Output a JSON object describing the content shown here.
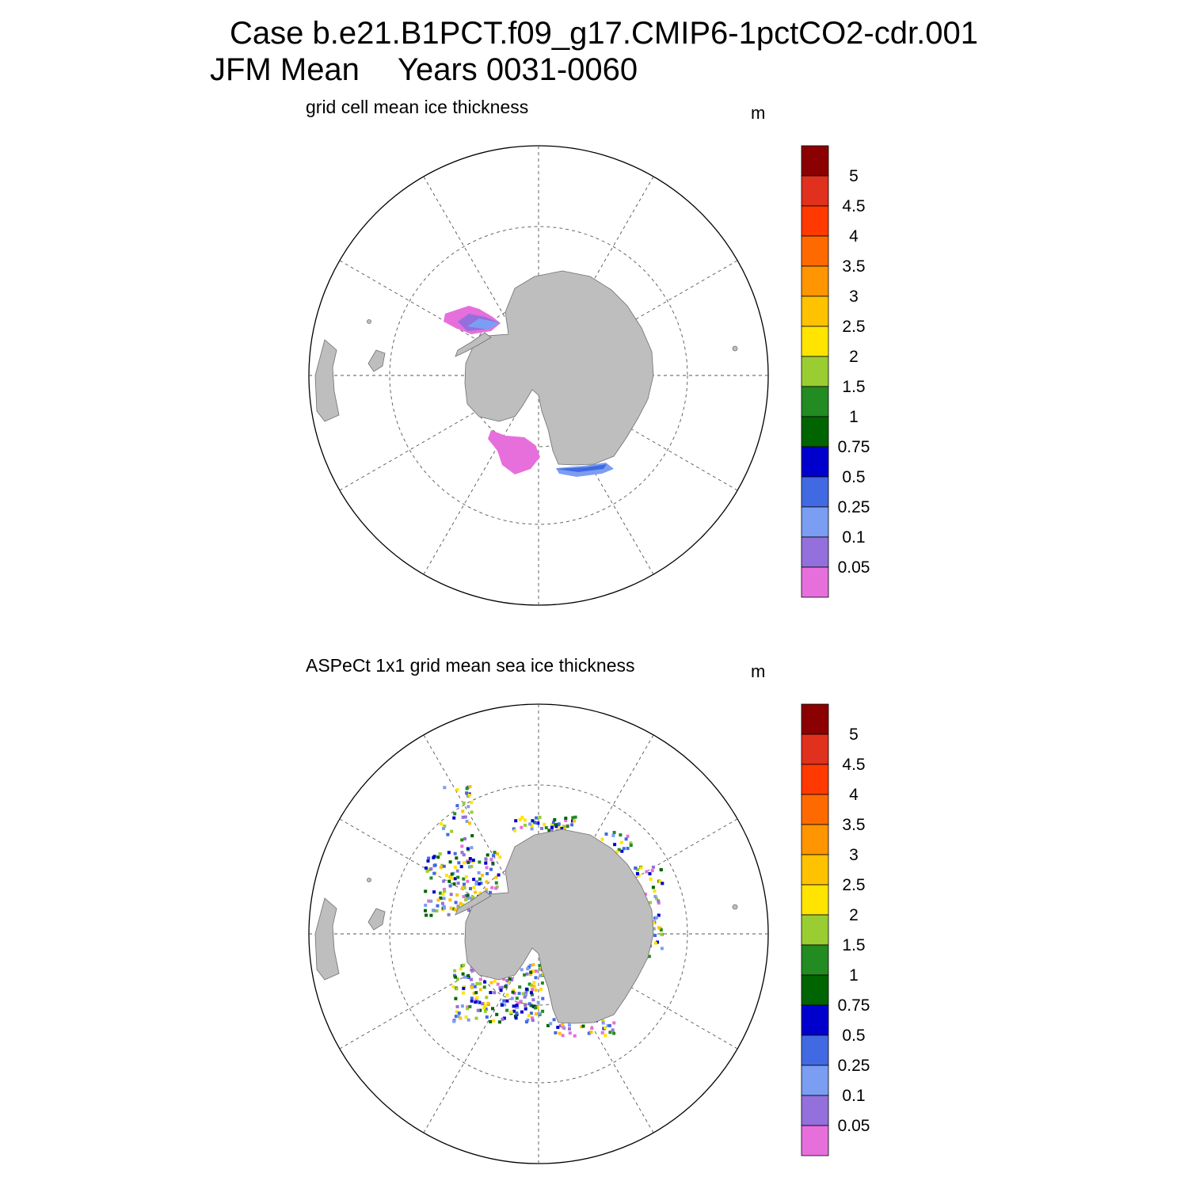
{
  "title": {
    "line1": "Case b.e21.B1PCT.f09_g17.CMIP6-1pctCO2-cdr.001",
    "season": "JFM Mean",
    "years": "Years 0031-0060"
  },
  "colorbar": {
    "labels": [
      "5",
      "4.5",
      "4",
      "3.5",
      "3",
      "2.5",
      "2",
      "1.5",
      "1",
      "0.75",
      "0.5",
      "0.25",
      "0.1",
      "0.05"
    ],
    "colors_top_to_bottom": [
      "#8b0000",
      "#e0301e",
      "#ff3a00",
      "#ff6a00",
      "#ff9500",
      "#ffc200",
      "#ffe400",
      "#9acd32",
      "#228b22",
      "#006400",
      "#0000cd",
      "#4169e1",
      "#7b9ef2",
      "#9370db",
      "#e66fdc"
    ]
  },
  "colors": {
    "land": "#bebebe",
    "land_outline": "#707070"
  },
  "panels": [
    {
      "id": "model",
      "subtitle": "grid cell mean ice thickness",
      "units": "m"
    },
    {
      "id": "obs",
      "subtitle": "ASPeCt 1x1 grid mean sea ice thickness",
      "units": "m"
    }
  ]
}
